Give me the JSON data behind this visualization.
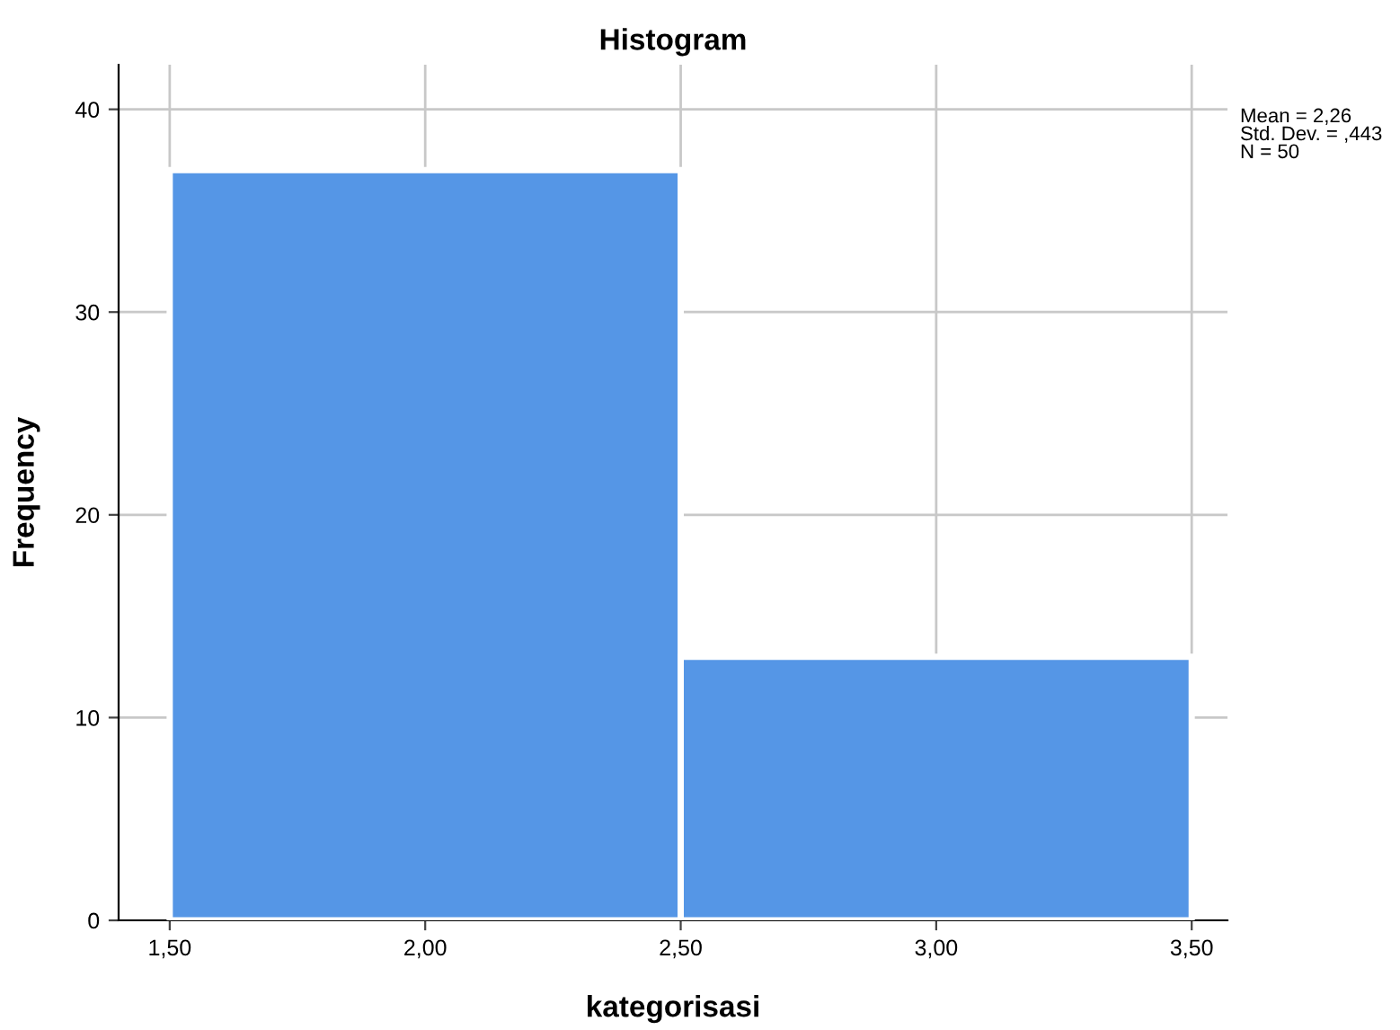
{
  "chart_data": {
    "type": "histogram",
    "title": "Histogram",
    "xlabel": "kategorisasi",
    "ylabel": "Frequency",
    "bins": [
      1.5,
      2.5,
      3.5
    ],
    "values": [
      37,
      13
    ],
    "color": "#5596e6",
    "xlim": [
      1.4,
      3.57
    ],
    "ylim": [
      0,
      42.2
    ],
    "xticks": [
      {
        "value": 1.5,
        "label": "1,50"
      },
      {
        "value": 2.0,
        "label": "2,00"
      },
      {
        "value": 2.5,
        "label": "2,50"
      },
      {
        "value": 3.0,
        "label": "3,00"
      },
      {
        "value": 3.5,
        "label": "3,50"
      }
    ],
    "yticks": [
      0,
      10,
      20,
      30,
      40
    ],
    "grid": true,
    "annotations": [
      "Mean = 2,26\nStd. Dev. = ,443\nN = 50"
    ]
  }
}
